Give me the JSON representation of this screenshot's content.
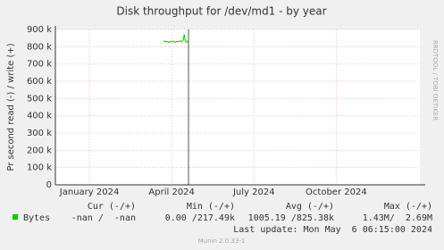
{
  "chart_data": {
    "type": "line",
    "title": "Disk throughput for /dev/md1 - by year",
    "y_label": "Pr second read (-) / write (+)",
    "x": [
      3.7,
      3.76,
      3.82,
      3.88,
      3.94,
      4.0,
      4.06,
      4.12,
      4.18,
      4.24,
      4.3,
      4.36,
      4.42,
      4.46,
      4.5,
      4.56,
      4.62
    ],
    "series": [
      {
        "name": "Bytes",
        "color": "#00cc00",
        "values": [
          835000,
          828000,
          832000,
          825000,
          830000,
          827000,
          833000,
          826000,
          831000,
          829000,
          834000,
          828000,
          838000,
          872000,
          830000,
          826000,
          840000
        ]
      }
    ],
    "xlim": [
      -0.24,
      13.05
    ],
    "xticks": [
      {
        "value": 1,
        "label": "January 2024"
      },
      {
        "value": 4,
        "label": "April 2024"
      },
      {
        "value": 7,
        "label": "July 2024"
      },
      {
        "value": 10,
        "label": "October 2024"
      }
    ],
    "ylim": [
      0,
      900000
    ],
    "yticks": [
      0,
      {
        "value": 100000,
        "label": "100 k"
      },
      {
        "value": 200000,
        "label": "200 k"
      },
      {
        "value": 300000,
        "label": "300 k"
      },
      {
        "value": 400000,
        "label": "400 k"
      },
      {
        "value": 500000,
        "label": "500 k"
      },
      {
        "value": 600000,
        "label": "600 k"
      },
      {
        "value": 700000,
        "label": "700 k"
      },
      {
        "value": 800000,
        "label": "800 k"
      },
      {
        "value": 900000,
        "label": "900 k"
      }
    ],
    "grid": true,
    "legend_headers": [
      "Cur (-/+)",
      "Min (-/+)",
      "Avg (-/+)",
      "Max (-/+)"
    ],
    "legend_stats": [
      "-nan /  -nan",
      "0.00 /217.49k",
      "1005.19 /825.38k",
      "1.43M/  2.69M"
    ],
    "last_update": "Last update: Mon May  6 06:15:00 2024",
    "watermark": "RRDTOOL / TOBI OETIKER",
    "footer": "Munin 2.0.33-1"
  }
}
